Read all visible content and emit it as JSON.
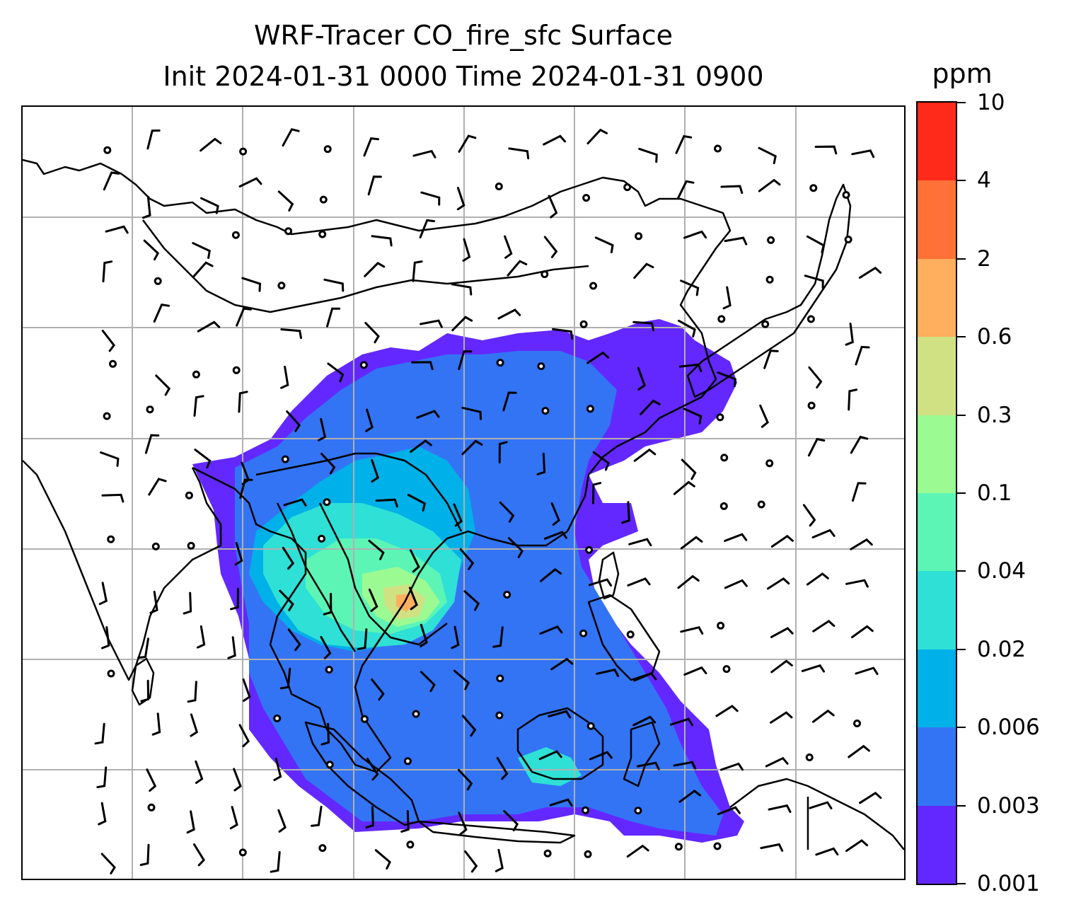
{
  "title": {
    "line1": "WRF-Tracer CO_fire_sfc Surface",
    "line2": "Init 2024-01-31 0000 Time 2024-01-31 0900"
  },
  "colorbar": {
    "unit": "ppm",
    "levels": [
      "0.001",
      "0.003",
      "0.006",
      "0.02",
      "0.04",
      "0.1",
      "0.3",
      "0.6",
      "2",
      "4",
      "10"
    ],
    "colors": [
      "#6328ff",
      "#3374f5",
      "#00b0e8",
      "#2ee0d6",
      "#5cf5b6",
      "#9cfa93",
      "#d0e184",
      "#ffaf5e",
      "#ff7136",
      "#ff2a1a"
    ]
  },
  "map": {
    "gridlines": true,
    "grid_color": "#b0b0b0",
    "coastline_color": "#000000",
    "layers": [
      "coastlines",
      "country-borders",
      "CO-fire-concentration-shading",
      "wind-barbs",
      "calm-wind-circles"
    ]
  }
}
